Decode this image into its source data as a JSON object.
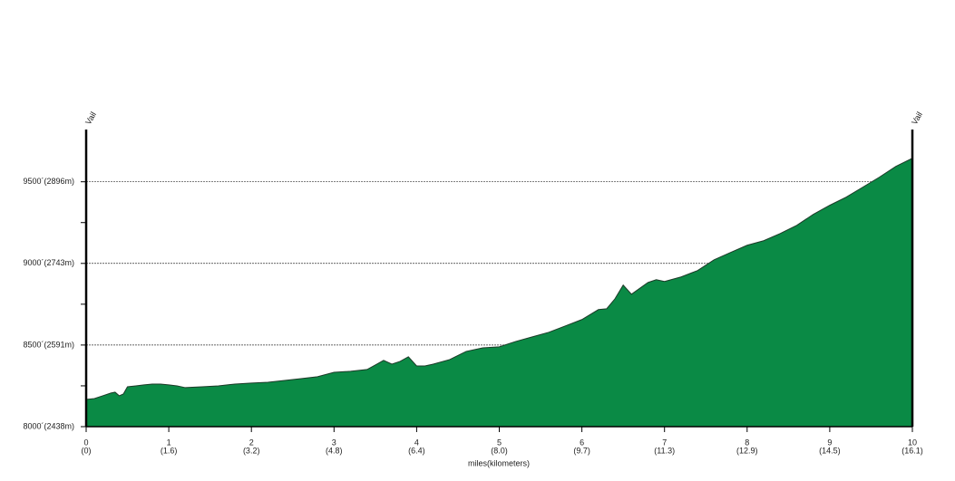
{
  "chart_data": {
    "type": "area",
    "annotations": [
      "Vail",
      "Vail"
    ],
    "x_label": "miles(kilometers)",
    "x": [
      0,
      0.1,
      0.2,
      0.3,
      0.35,
      0.4,
      0.45,
      0.5,
      0.6,
      0.7,
      0.8,
      0.9,
      1.0,
      1.1,
      1.2,
      1.4,
      1.6,
      1.8,
      2.0,
      2.2,
      2.4,
      2.6,
      2.8,
      3.0,
      3.2,
      3.4,
      3.5,
      3.6,
      3.7,
      3.8,
      3.9,
      4.0,
      4.1,
      4.2,
      4.4,
      4.6,
      4.8,
      5.0,
      5.2,
      5.4,
      5.6,
      5.8,
      6.0,
      6.2,
      6.3,
      6.4,
      6.5,
      6.6,
      6.8,
      6.9,
      7.0,
      7.2,
      7.4,
      7.6,
      7.8,
      8.0,
      8.2,
      8.4,
      8.6,
      8.8,
      9.0,
      9.2,
      9.4,
      9.6,
      9.8,
      10.0
    ],
    "values": [
      8167,
      8172,
      8189,
      8206,
      8211,
      8189,
      8200,
      8244,
      8250,
      8256,
      8261,
      8261,
      8256,
      8250,
      8239,
      8244,
      8250,
      8261,
      8267,
      8272,
      8283,
      8294,
      8306,
      8333,
      8339,
      8350,
      8378,
      8406,
      8383,
      8400,
      8428,
      8372,
      8372,
      8383,
      8411,
      8461,
      8483,
      8489,
      8522,
      8550,
      8578,
      8617,
      8656,
      8717,
      8722,
      8783,
      8867,
      8811,
      8883,
      8900,
      8889,
      8917,
      8956,
      9022,
      9067,
      9111,
      9139,
      9183,
      9233,
      9300,
      9356,
      9406,
      9467,
      9528,
      9594,
      9644
    ],
    "color": "#0a8a45",
    "xlim": [
      0,
      10
    ],
    "xticks": [
      0,
      1,
      2,
      3,
      4,
      5,
      6,
      7,
      8,
      9,
      10
    ],
    "xticks_km": [
      "(0)",
      "(1.6)",
      "(3.2)",
      "(4.8)",
      "(6.4)",
      "(8.0)",
      "(9.7)",
      "(11.3)",
      "(12.9)",
      "(14.5)",
      "(16.1)"
    ],
    "ylim": [
      8000,
      9820
    ],
    "yticks": [
      {
        "value": 8000,
        "label": "8000´(2438m)"
      },
      {
        "value": 8500,
        "label": "8500´(2591m)"
      },
      {
        "value": 9000,
        "label": "9000´(2743m)"
      },
      {
        "value": 9500,
        "label": "9500´(2896m)"
      }
    ],
    "minor_yticks": [
      8250,
      8750,
      9250
    ],
    "grid": true
  }
}
